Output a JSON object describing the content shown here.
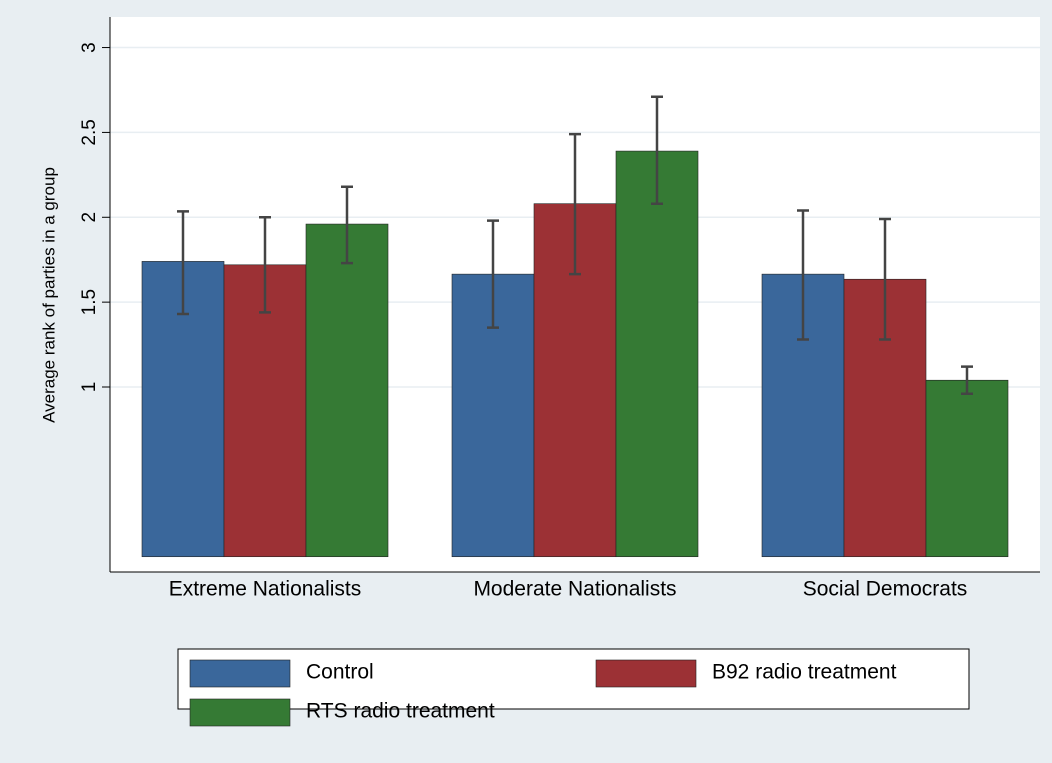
{
  "chart_data": {
    "type": "bar",
    "y_label": "Average rank of parties in a group",
    "categories": [
      "Extreme Nationalists",
      "Moderate Nationalists",
      "Social Democrats"
    ],
    "series": [
      {
        "name": "Control",
        "color": "#3a679b",
        "values": [
          1.74,
          1.665,
          1.665
        ],
        "lower": [
          1.43,
          1.35,
          1.28
        ],
        "upper": [
          2.035,
          1.98,
          2.04
        ]
      },
      {
        "name": "B92 radio treatment",
        "color": "#9c3135",
        "values": [
          1.72,
          2.08,
          1.635
        ],
        "lower": [
          1.44,
          1.665,
          1.28
        ],
        "upper": [
          2.0,
          2.49,
          1.99
        ]
      },
      {
        "name": "RTS radio treatment",
        "color": "#357a34",
        "values": [
          1.96,
          2.39,
          1.04
        ],
        "lower": [
          1.73,
          2.08,
          0.96
        ],
        "upper": [
          2.18,
          2.71,
          1.12
        ]
      }
    ],
    "ylim": [
      -0.09,
      3.18
    ],
    "yticks": [
      1,
      1.5,
      2,
      2.5,
      3
    ],
    "grid": true
  }
}
